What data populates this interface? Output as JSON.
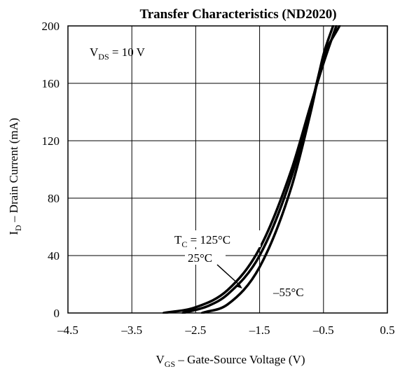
{
  "chart_data": {
    "type": "line",
    "title": "Transfer Characteristics (ND2020)",
    "xlabel": {
      "main": "V",
      "sub": "GS",
      "rest": " – Gate-Source Voltage (V)"
    },
    "ylabel": {
      "main": "I",
      "sub": "D",
      "rest": " – Drain Current (mA)"
    },
    "xlim": [
      -4.5,
      0.5
    ],
    "ylim": [
      0,
      200
    ],
    "xticks": [
      -4.5,
      -3.5,
      -2.5,
      -1.5,
      -0.5,
      0.5
    ],
    "xtick_labels": [
      "–4.5",
      "–3.5",
      "–2.5",
      "–1.5",
      "–0.5",
      "0.5"
    ],
    "yticks": [
      0,
      40,
      80,
      120,
      160,
      200
    ],
    "ytick_labels": [
      "0",
      "40",
      "80",
      "120",
      "160",
      "200"
    ],
    "grid": true,
    "condition": {
      "main": "V",
      "sub": "DS",
      "rest": " = 10 V"
    },
    "series": [
      {
        "name": "125°C",
        "x": [
          -3.0,
          -2.5,
          -2.0,
          -1.5,
          -1.0,
          -0.7,
          -0.5,
          -0.3
        ],
        "y": [
          0,
          4,
          16,
          45,
          100,
          145,
          174,
          200
        ]
      },
      {
        "name": "25°C",
        "x": [
          -2.7,
          -2.3,
          -2.0,
          -1.5,
          -1.0,
          -0.7,
          -0.5,
          -0.25
        ],
        "y": [
          0,
          5,
          13,
          40,
          95,
          143,
          178,
          200
        ]
      },
      {
        "name": "–55°C",
        "x": [
          -2.4,
          -2.0,
          -1.5,
          -1.0,
          -0.7,
          -0.5,
          -0.35
        ],
        "y": [
          0,
          6,
          32,
          88,
          140,
          180,
          200
        ]
      }
    ],
    "annotations": [
      {
        "main": "T",
        "sub": "C",
        "rest": " = 125°C"
      },
      {
        "text": "25°C"
      },
      {
        "text": "–55°C"
      }
    ]
  }
}
